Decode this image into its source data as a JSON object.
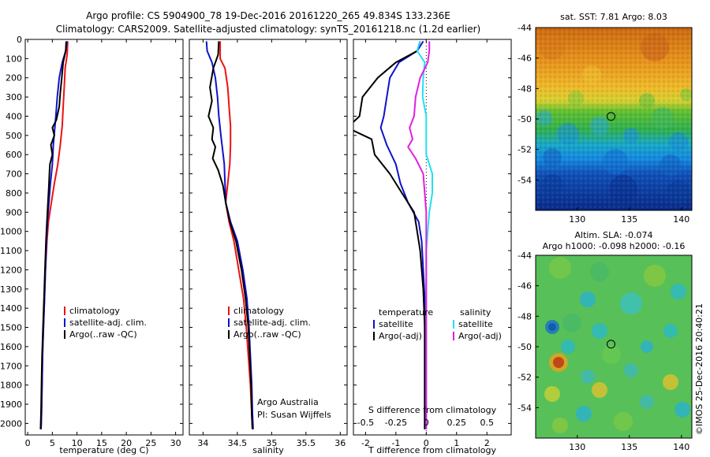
{
  "header": {
    "line1": "Argo profile: CS 5904900_78 19-Dec-2016 20161220_265 49.834S 133.236E",
    "line2": "Climatology: CARS2009. Satellite-adjusted climatology: synTS_20161218.nc (1.2d earlier)"
  },
  "colors": {
    "climatology": "#ee1111",
    "satellite": "#1111cc",
    "argo": "#000000",
    "satellite_s": "#22e0f0",
    "argo_s": "#e020e0"
  },
  "credit": "©IMOS 25-Dec-2016 20:40:21",
  "chart_data": [
    {
      "type": "line",
      "xlabel": "temperature (deg C)",
      "ylabel": "",
      "xlim": [
        -0.5,
        31.5
      ],
      "ylim": [
        2060,
        0
      ],
      "xticks": [
        0,
        5,
        10,
        15,
        20,
        25,
        30
      ],
      "yticks": [
        0,
        100,
        200,
        300,
        400,
        500,
        600,
        700,
        800,
        900,
        1000,
        1100,
        1200,
        1300,
        1400,
        1500,
        1600,
        1700,
        1800,
        1900,
        2000
      ],
      "legend": [
        "climatology",
        "satellite-adj. clim.",
        "Argo(..raw -QC)"
      ],
      "legend_position": "center-right",
      "series": [
        {
          "name": "climatology",
          "color": "#ee1111",
          "points": [
            [
              8.1,
              10
            ],
            [
              8.0,
              80
            ],
            [
              7.6,
              150
            ],
            [
              7.4,
              250
            ],
            [
              7.2,
              350
            ],
            [
              7.0,
              450
            ],
            [
              6.6,
              550
            ],
            [
              6.1,
              650
            ],
            [
              5.4,
              750
            ],
            [
              4.8,
              850
            ],
            [
              4.2,
              950
            ],
            [
              3.9,
              1050
            ],
            [
              3.6,
              1200
            ],
            [
              3.4,
              1350
            ],
            [
              3.2,
              1500
            ],
            [
              3.0,
              1650
            ],
            [
              2.9,
              1800
            ],
            [
              2.8,
              1950
            ],
            [
              2.7,
              2030
            ]
          ]
        },
        {
          "name": "satellite-adj. clim.",
          "color": "#1111cc",
          "points": [
            [
              8.0,
              10
            ],
            [
              7.7,
              60
            ],
            [
              7.0,
              120
            ],
            [
              6.4,
              200
            ],
            [
              6.0,
              300
            ],
            [
              5.7,
              400
            ],
            [
              5.5,
              460
            ],
            [
              5.2,
              550
            ],
            [
              5.0,
              650
            ],
            [
              4.6,
              750
            ],
            [
              4.3,
              850
            ],
            [
              4.0,
              950
            ],
            [
              3.8,
              1050
            ],
            [
              3.6,
              1200
            ],
            [
              3.4,
              1350
            ],
            [
              3.2,
              1500
            ],
            [
              3.0,
              1650
            ],
            [
              2.9,
              1800
            ],
            [
              2.8,
              1950
            ],
            [
              2.7,
              2030
            ]
          ]
        },
        {
          "name": "Argo(..raw -QC)",
          "color": "#000000",
          "points": [
            [
              7.8,
              10
            ],
            [
              7.7,
              60
            ],
            [
              7.2,
              120
            ],
            [
              6.9,
              200
            ],
            [
              6.6,
              280
            ],
            [
              6.4,
              350
            ],
            [
              5.8,
              420
            ],
            [
              5.0,
              460
            ],
            [
              5.4,
              500
            ],
            [
              4.7,
              550
            ],
            [
              5.0,
              600
            ],
            [
              4.5,
              650
            ],
            [
              4.4,
              700
            ],
            [
              4.3,
              760
            ],
            [
              4.1,
              850
            ],
            [
              3.9,
              950
            ],
            [
              3.7,
              1050
            ],
            [
              3.5,
              1200
            ],
            [
              3.3,
              1350
            ],
            [
              3.1,
              1500
            ],
            [
              2.9,
              1650
            ],
            [
              2.8,
              1800
            ],
            [
              2.7,
              1950
            ],
            [
              2.6,
              2030
            ]
          ]
        }
      ]
    },
    {
      "type": "line",
      "xlabel": "salinity",
      "xlim": [
        33.8,
        36.1
      ],
      "ylim": [
        2060,
        0
      ],
      "xticks": [
        34,
        34.5,
        35,
        35.5,
        36
      ],
      "legend": [
        "climatology",
        "satellite-adj. clim.",
        "Argo(..raw -QC)"
      ],
      "legend_position": "center-right",
      "annotation": [
        "Argo Australia",
        "PI: Susan Wijffels"
      ],
      "series": [
        {
          "name": "climatology",
          "color": "#ee1111",
          "points": [
            [
              34.25,
              10
            ],
            [
              34.25,
              100
            ],
            [
              34.32,
              150
            ],
            [
              34.36,
              250
            ],
            [
              34.38,
              350
            ],
            [
              34.4,
              450
            ],
            [
              34.4,
              550
            ],
            [
              34.39,
              650
            ],
            [
              34.36,
              750
            ],
            [
              34.33,
              850
            ],
            [
              34.38,
              950
            ],
            [
              34.45,
              1050
            ],
            [
              34.52,
              1200
            ],
            [
              34.59,
              1350
            ],
            [
              34.63,
              1500
            ],
            [
              34.66,
              1650
            ],
            [
              34.69,
              1800
            ],
            [
              34.71,
              1950
            ],
            [
              34.72,
              2030
            ]
          ]
        },
        {
          "name": "satellite-adj. clim.",
          "color": "#1111cc",
          "points": [
            [
              34.05,
              10
            ],
            [
              34.06,
              60
            ],
            [
              34.13,
              120
            ],
            [
              34.18,
              200
            ],
            [
              34.21,
              300
            ],
            [
              34.23,
              400
            ],
            [
              34.26,
              500
            ],
            [
              34.31,
              650
            ],
            [
              34.32,
              750
            ],
            [
              34.33,
              850
            ],
            [
              34.4,
              950
            ],
            [
              34.5,
              1050
            ],
            [
              34.58,
              1200
            ],
            [
              34.64,
              1350
            ],
            [
              34.67,
              1500
            ],
            [
              34.69,
              1650
            ],
            [
              34.71,
              1800
            ],
            [
              34.72,
              1950
            ],
            [
              34.73,
              2030
            ]
          ]
        },
        {
          "name": "Argo(..raw -QC)",
          "color": "#000000",
          "points": [
            [
              34.23,
              10
            ],
            [
              34.22,
              80
            ],
            [
              34.15,
              150
            ],
            [
              34.1,
              250
            ],
            [
              34.13,
              320
            ],
            [
              34.08,
              400
            ],
            [
              34.15,
              460
            ],
            [
              34.13,
              520
            ],
            [
              34.18,
              560
            ],
            [
              34.14,
              620
            ],
            [
              34.22,
              680
            ],
            [
              34.29,
              760
            ],
            [
              34.33,
              850
            ],
            [
              34.39,
              950
            ],
            [
              34.48,
              1050
            ],
            [
              34.56,
              1200
            ],
            [
              34.62,
              1350
            ],
            [
              34.66,
              1500
            ],
            [
              34.68,
              1650
            ],
            [
              34.7,
              1800
            ],
            [
              34.71,
              1950
            ],
            [
              34.72,
              2030
            ]
          ]
        }
      ]
    },
    {
      "type": "line",
      "xlabel": "T difference from climatology",
      "xlabel_top": "S difference from climatology",
      "xlim": [
        -2.4,
        2.8
      ],
      "ylim": [
        2060,
        0
      ],
      "xticks_T": [
        "-2",
        "-1",
        "0",
        "1",
        "2"
      ],
      "xticks_S": [
        "-0.5",
        "-0.25",
        "0",
        "0.25",
        "0.5"
      ],
      "legend_left_title": "temperature",
      "legend_right_title": "salinity",
      "legend_left": [
        "satellite",
        "Argo(-adj)"
      ],
      "legend_right": [
        "satellite",
        "Argo(-adj)"
      ],
      "legend_position": "center",
      "series": [
        {
          "name": "temperature satellite",
          "color": "#1111cc",
          "points": [
            [
              -0.1,
              10
            ],
            [
              -0.3,
              60
            ],
            [
              -0.9,
              120
            ],
            [
              -1.2,
              200
            ],
            [
              -1.3,
              300
            ],
            [
              -1.4,
              400
            ],
            [
              -1.5,
              460
            ],
            [
              -1.3,
              550
            ],
            [
              -1.0,
              650
            ],
            [
              -0.85,
              750
            ],
            [
              -0.6,
              850
            ],
            [
              -0.25,
              950
            ],
            [
              -0.15,
              1050
            ],
            [
              -0.1,
              1200
            ],
            [
              -0.05,
              1350
            ],
            [
              -0.05,
              1500
            ],
            [
              -0.05,
              1650
            ],
            [
              -0.05,
              1800
            ],
            [
              -0.05,
              1950
            ],
            [
              -0.05,
              2030
            ]
          ]
        },
        {
          "name": "temperature Argo(-adj)",
          "color": "#000000",
          "points": [
            [
              -0.2,
              10
            ],
            [
              -0.3,
              60
            ],
            [
              -1.0,
              120
            ],
            [
              -1.6,
              200
            ],
            [
              -2.1,
              300
            ],
            [
              -2.2,
              400
            ],
            [
              -2.6,
              460
            ],
            [
              -1.8,
              520
            ],
            [
              -1.7,
              600
            ],
            [
              -1.2,
              700
            ],
            [
              -0.8,
              800
            ],
            [
              -0.4,
              900
            ],
            [
              -0.3,
              1000
            ],
            [
              -0.2,
              1100
            ],
            [
              -0.1,
              1300
            ],
            [
              -0.05,
              1500
            ],
            [
              -0.05,
              1700
            ],
            [
              -0.05,
              1900
            ],
            [
              -0.05,
              2030
            ]
          ]
        },
        {
          "name": "salinity satellite",
          "color": "#22e0f0",
          "points": [
            [
              -0.2,
              10
            ],
            [
              -0.3,
              60
            ],
            [
              -0.05,
              120
            ],
            [
              -0.1,
              200
            ],
            [
              -0.12,
              300
            ],
            [
              0.0,
              400
            ],
            [
              0.0,
              500
            ],
            [
              0.0,
              600
            ],
            [
              0.2,
              700
            ],
            [
              0.2,
              800
            ],
            [
              0.1,
              900
            ],
            [
              0.05,
              1000
            ],
            [
              0.0,
              1100
            ],
            [
              0.0,
              1300
            ],
            [
              0.0,
              1500
            ],
            [
              0.0,
              1700
            ],
            [
              0.0,
              1900
            ],
            [
              0.0,
              2030
            ]
          ]
        },
        {
          "name": "salinity Argo(-adj)",
          "color": "#e020e0",
          "points": [
            [
              0.1,
              10
            ],
            [
              0.1,
              60
            ],
            [
              0.05,
              120
            ],
            [
              -0.2,
              200
            ],
            [
              -0.35,
              300
            ],
            [
              -0.4,
              400
            ],
            [
              -0.55,
              460
            ],
            [
              -0.45,
              520
            ],
            [
              -0.6,
              560
            ],
            [
              -0.35,
              620
            ],
            [
              -0.1,
              700
            ],
            [
              -0.05,
              800
            ],
            [
              0.0,
              900
            ],
            [
              0.0,
              1000
            ],
            [
              0.0,
              1100
            ],
            [
              0.0,
              1300
            ],
            [
              0.0,
              1500
            ],
            [
              0.0,
              1700
            ],
            [
              0.0,
              1900
            ],
            [
              0.0,
              2030
            ]
          ]
        }
      ]
    },
    {
      "type": "heatmap",
      "title": "sat. SST: 7.81  Argo: 8.03",
      "xticks": [
        "130",
        "135",
        "140"
      ],
      "yticks": [
        "-44",
        "-46",
        "-48",
        "-50",
        "-52",
        "-54"
      ],
      "xlim": [
        126,
        141
      ],
      "ylim": [
        -56,
        -44
      ],
      "marker": {
        "lon": 133.236,
        "lat": -49.834
      }
    },
    {
      "type": "heatmap",
      "title": "Altim. SLA: -0.074",
      "subtitle": "Argo h1000: -0.098 h2000: -0.16",
      "xticks": [
        "130",
        "135",
        "140"
      ],
      "yticks": [
        "-44",
        "-46",
        "-48",
        "-50",
        "-52",
        "-54"
      ],
      "xlim": [
        126,
        141
      ],
      "ylim": [
        -56,
        -44
      ],
      "marker": {
        "lon": 133.236,
        "lat": -49.834
      }
    }
  ]
}
